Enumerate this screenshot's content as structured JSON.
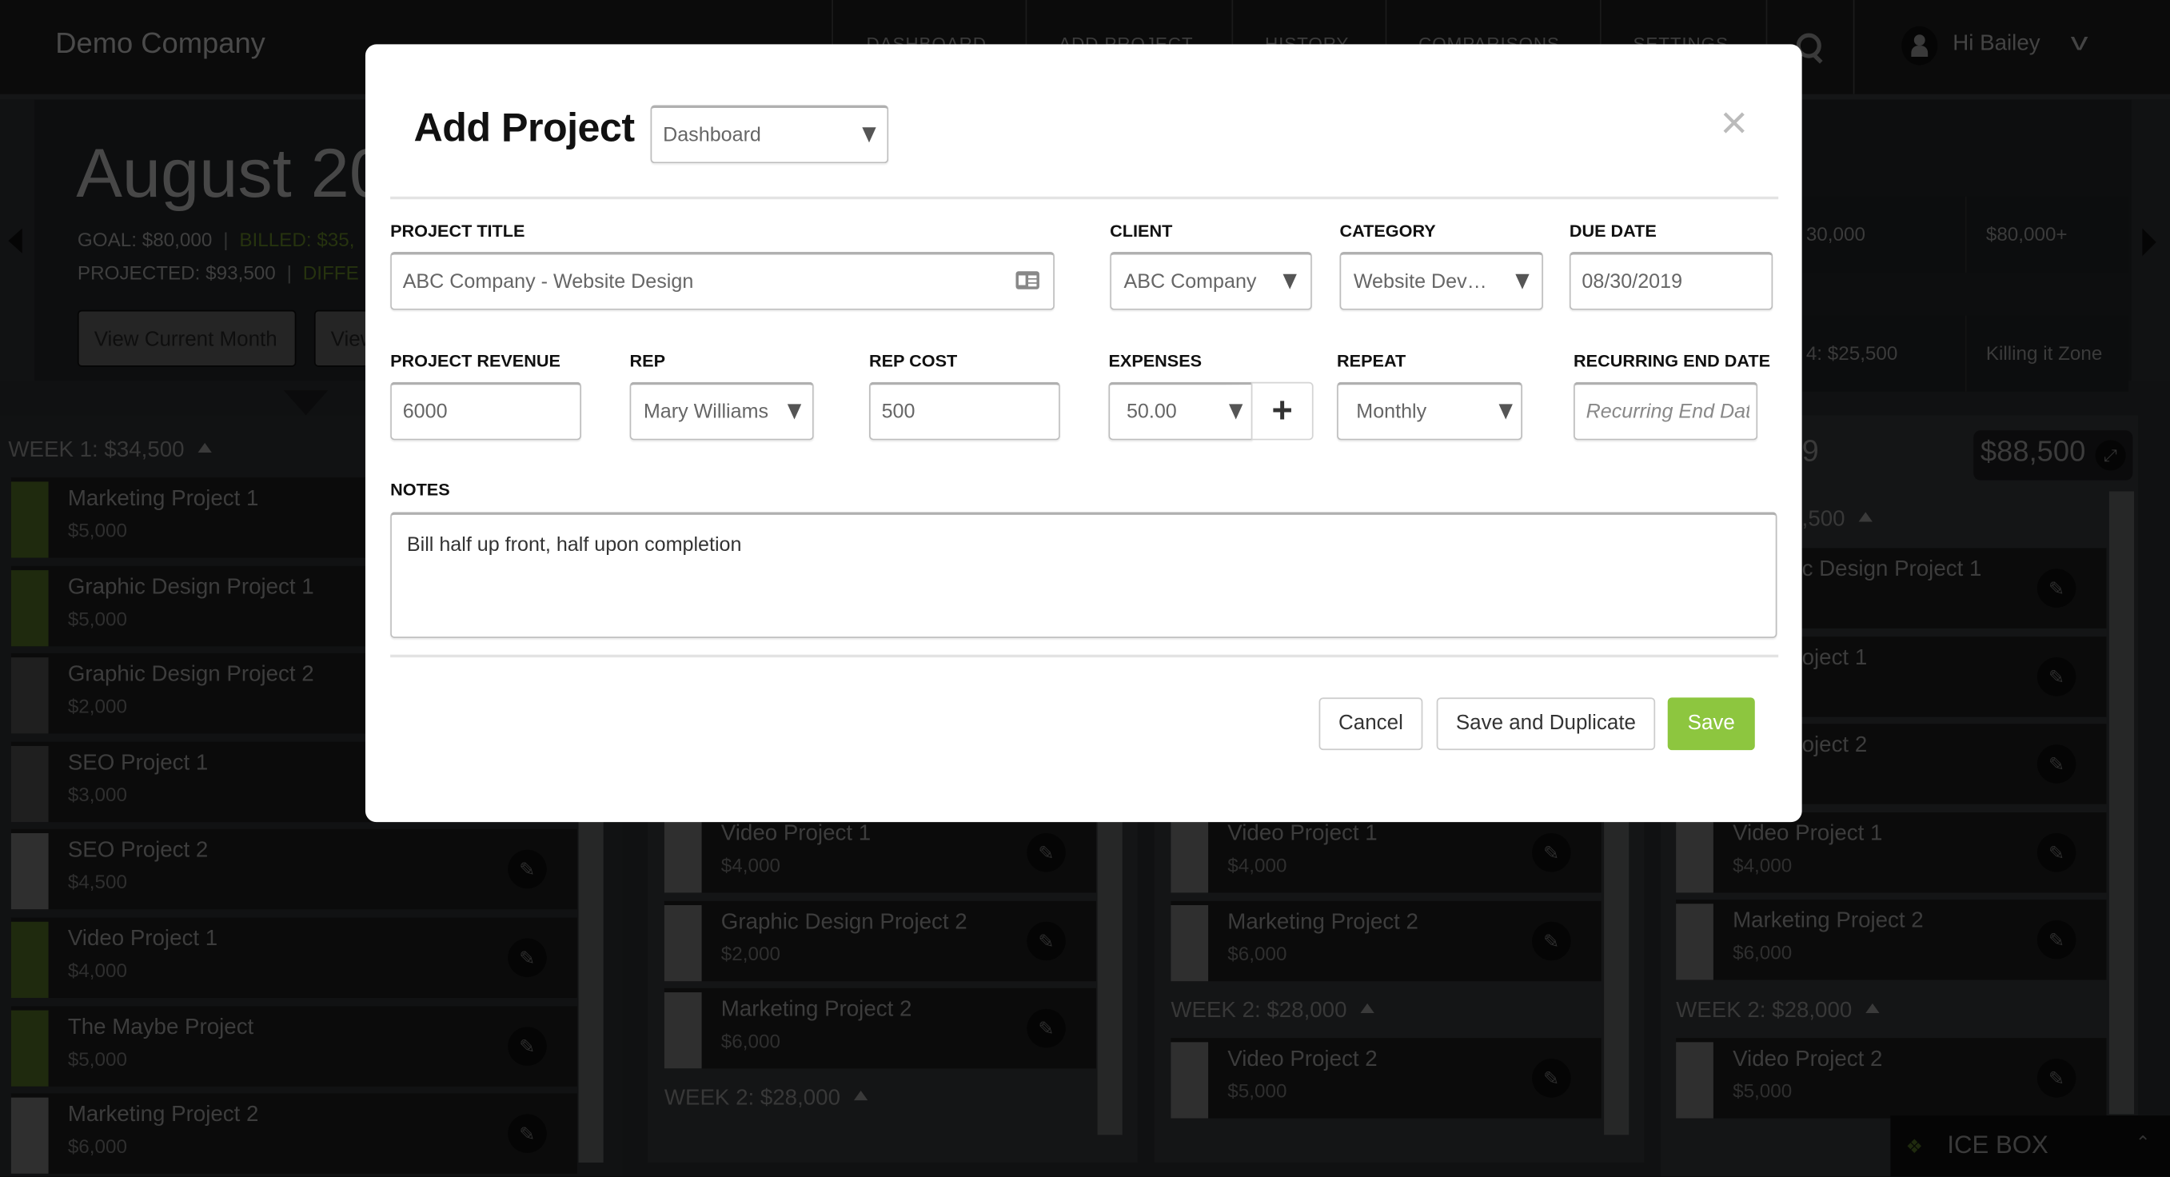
{
  "header": {
    "brand": "Demo Company",
    "nav": [
      "DASHBOARD",
      "ADD PROJECT",
      "HISTORY",
      "COMPARISONS",
      "SETTINGS"
    ],
    "greeting": "Hi Bailey",
    "icons": [
      "search-icon",
      "user-avatar-icon",
      "chevron-down-icon"
    ]
  },
  "hero": {
    "month_title": "August 20",
    "goal": "GOAL: $80,000",
    "billed": "BILLED: $35,",
    "projected": "PROJECTED: $93,500",
    "difference": "DIFFE",
    "buttons": [
      "View Current Month",
      "View"
    ],
    "zones": {
      "top_row": [
        "30,000",
        "$80,000+"
      ],
      "bottom_row": [
        "4: $25,500",
        "Killing it Zone"
      ]
    }
  },
  "board": {
    "column1": {
      "week_header": "WEEK 1: $34,500",
      "cards": [
        {
          "title": "Marketing Project 1",
          "amount": "$5,000",
          "status": "green"
        },
        {
          "title": "Graphic Design Project 1",
          "amount": "$5,000",
          "status": "green"
        },
        {
          "title": "Graphic Design Project 2",
          "amount": "$2,000",
          "status": "grey"
        },
        {
          "title": "SEO Project 1",
          "amount": "$3,000",
          "status": "grey"
        },
        {
          "title": "SEO Project 2",
          "amount": "$4,500",
          "status": "light"
        },
        {
          "title": "Video Project 1",
          "amount": "$4,000",
          "status": "green"
        },
        {
          "title": "The Maybe Project",
          "amount": "$5,000",
          "status": "green"
        },
        {
          "title": "Marketing Project 2",
          "amount": "$6,000",
          "status": "light"
        }
      ]
    },
    "column2": {
      "cards": [
        {
          "title": "Video Project 1",
          "amount": "$4,000",
          "status": "light"
        },
        {
          "title": "Graphic Design Project 2",
          "amount": "$2,000",
          "status": "light"
        },
        {
          "title": "Marketing Project 2",
          "amount": "$6,000",
          "status": "light"
        }
      ],
      "week2_header": "WEEK 2: $28,000"
    },
    "column3": {
      "cards": [
        {
          "title": "Video Project 1",
          "amount": "$4,000",
          "status": "light"
        },
        {
          "title": "Marketing Project 2",
          "amount": "$6,000",
          "status": "light"
        }
      ],
      "week2_header": "WEEK 2: $28,000",
      "week2_cards": [
        {
          "title": "Video Project 2",
          "amount": "$5,000",
          "status": "light"
        }
      ]
    },
    "column4": {
      "title_fragment": "9",
      "total": "$88,500",
      "week_header_fragment": ",500",
      "cards": [
        {
          "title": "c Design Project 1",
          "amount": "",
          "status": "light"
        },
        {
          "title": "oject 1",
          "amount": "",
          "status": "light"
        },
        {
          "title": "oject 2",
          "amount": "",
          "status": "light"
        },
        {
          "title": "Video Project 1",
          "amount": "$4,000",
          "status": "light"
        },
        {
          "title": "Marketing Project 2",
          "amount": "$6,000",
          "status": "light"
        }
      ],
      "week2_header": "WEEK 2: $28,000",
      "week2_cards": [
        {
          "title": "Video Project 2",
          "amount": "$5,000",
          "status": "light"
        }
      ]
    },
    "icebox_label": "ICE BOX"
  },
  "modal": {
    "title": "Add Project",
    "view_select": "Dashboard",
    "fields": {
      "project_title": {
        "label": "PROJECT TITLE",
        "value": "ABC Company - Website Design"
      },
      "client": {
        "label": "CLIENT",
        "value": "ABC Company"
      },
      "category": {
        "label": "CATEGORY",
        "value": "Website Development"
      },
      "due_date": {
        "label": "DUE DATE",
        "value": "08/30/2019"
      },
      "project_revenue": {
        "label": "PROJECT REVENUE",
        "value": "6000"
      },
      "rep": {
        "label": "REP",
        "value": "Mary Williams"
      },
      "rep_cost": {
        "label": "REP COST",
        "value": "500"
      },
      "expenses": {
        "label": "EXPENSES",
        "value": "50.00"
      },
      "repeat": {
        "label": "REPEAT",
        "value": "Monthly"
      },
      "recurring_end_date": {
        "label": "RECURRING END DATE",
        "value": "",
        "placeholder": "Recurring End Date"
      },
      "notes": {
        "label": "NOTES",
        "value": "Bill half up front, half upon completion"
      }
    },
    "buttons": {
      "cancel": "Cancel",
      "save_duplicate": "Save and Duplicate",
      "save": "Save"
    }
  },
  "colors": {
    "save_green": "#8dc63f",
    "status_green": "#1f2a0e",
    "status_grey": "#1f1f1f",
    "status_light": "#2f2f2f"
  }
}
